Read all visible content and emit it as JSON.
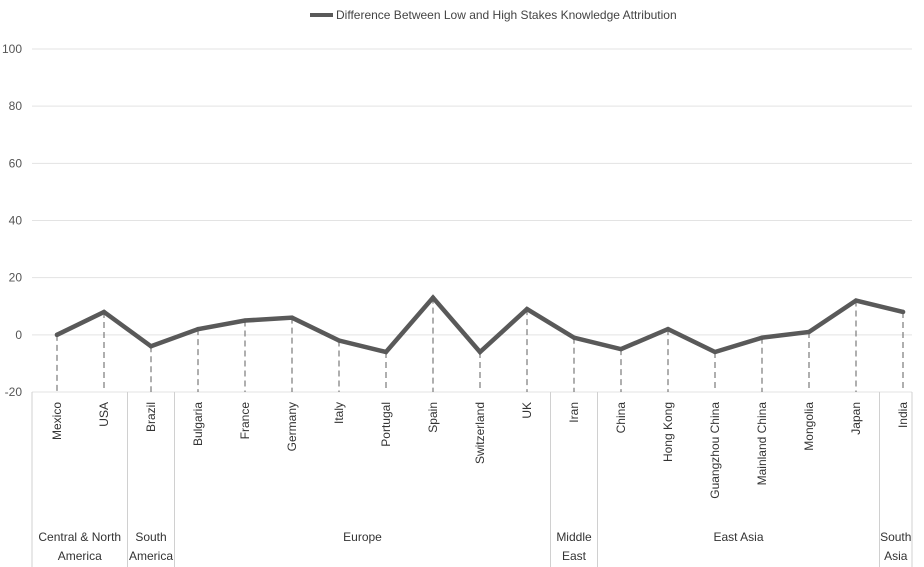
{
  "chart_data": {
    "type": "line",
    "title": "",
    "xlabel": "",
    "ylabel": "",
    "ylim": [
      -20,
      100
    ],
    "yticks": [
      100,
      80,
      60,
      40,
      20,
      0,
      -20
    ],
    "grid": true,
    "legend_position": "top-center",
    "line_color": "#595959",
    "categories": [
      "Mexico",
      "USA",
      "Brazil",
      "Bulgaria",
      "France",
      "Germany",
      "Italy",
      "Portugal",
      "Spain",
      "Switzerland",
      "UK",
      "Iran",
      "China",
      "Hong Kong",
      "Guangzhou China",
      "Mainland China",
      "Mongolia",
      "Japan",
      "India"
    ],
    "series": [
      {
        "name": "Difference Between Low and High Stakes Knowledge Attribution",
        "values": [
          0,
          8,
          -4,
          2,
          5,
          6,
          -2,
          -6,
          13,
          -6,
          9,
          -1,
          -5,
          2,
          -6,
          -1,
          1,
          12,
          8
        ]
      }
    ],
    "groups": [
      {
        "lines": [
          "Central & North",
          "America"
        ],
        "start": 0,
        "end": 1
      },
      {
        "lines": [
          "South",
          "America"
        ],
        "start": 2,
        "end": 2
      },
      {
        "lines": [
          "Europe"
        ],
        "start": 3,
        "end": 10
      },
      {
        "lines": [
          "Middle",
          "East"
        ],
        "start": 11,
        "end": 11
      },
      {
        "lines": [
          "East Asia"
        ],
        "start": 12,
        "end": 17
      },
      {
        "lines": [
          "South",
          "Asia"
        ],
        "start": 18,
        "end": 18
      }
    ]
  }
}
